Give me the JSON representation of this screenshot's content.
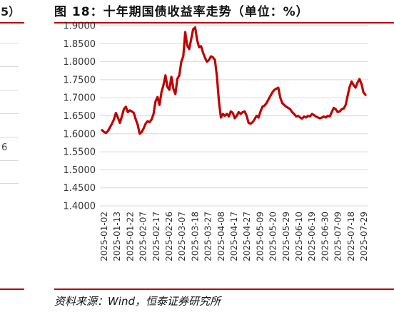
{
  "title": "图 18：十年期国债收益率走势（单位：%）",
  "source": "资料来源：Wind，恒泰证券研究所",
  "left_fragment": {
    "glyph_top": "5）",
    "glyph_mid": "6"
  },
  "colors": {
    "line": "#c00000",
    "grid": "#d9d9d9",
    "rule": "#c00000"
  },
  "chart_data": {
    "type": "line",
    "title": "",
    "xlabel": "",
    "ylabel": "",
    "ylim": [
      1.4,
      1.9
    ],
    "y_ticks": [
      "1.4000",
      "1.4500",
      "1.5000",
      "1.5500",
      "1.6000",
      "1.6500",
      "1.7000",
      "1.7500",
      "1.8000",
      "1.8500",
      "1.9000"
    ],
    "x_ticks": [
      "2025-01-02",
      "2025-01-13",
      "2025-01-22",
      "2025-02-07",
      "2025-02-17",
      "2025-02-26",
      "2025-03-07",
      "2025-03-18",
      "2025-03-27",
      "2025-04-08",
      "2025-04-17",
      "2025-04-27",
      "2025-05-09",
      "2025-05-20",
      "2025-05-29",
      "2025-06-10",
      "2025-06-19",
      "2025-06-30",
      "2025-07-09",
      "2025-07-18",
      "2025-07-29"
    ],
    "grid": "horizontal",
    "legend": "none",
    "series": [
      {
        "values": [
          1.61,
          1.605,
          1.602,
          1.608,
          1.618,
          1.628,
          1.64,
          1.658,
          1.645,
          1.63,
          1.648,
          1.668,
          1.675,
          1.66,
          1.665,
          1.662,
          1.658,
          1.64,
          1.625,
          1.6,
          1.605,
          1.615,
          1.628,
          1.635,
          1.632,
          1.64,
          1.655,
          1.69,
          1.702,
          1.68,
          1.715,
          1.735,
          1.762,
          1.73,
          1.722,
          1.758,
          1.725,
          1.71,
          1.752,
          1.762,
          1.8,
          1.815,
          1.882,
          1.845,
          1.835,
          1.862,
          1.89,
          1.895,
          1.86,
          1.84,
          1.843,
          1.825,
          1.81,
          1.8,
          1.805,
          1.815,
          1.812,
          1.805,
          1.76,
          1.69,
          1.645,
          1.655,
          1.65,
          1.655,
          1.648,
          1.662,
          1.658,
          1.643,
          1.65,
          1.66,
          1.655,
          1.66,
          1.662,
          1.65,
          1.63,
          1.628,
          1.632,
          1.64,
          1.65,
          1.645,
          1.662,
          1.675,
          1.678,
          1.685,
          1.695,
          1.705,
          1.715,
          1.722,
          1.725,
          1.728,
          1.7,
          1.685,
          1.68,
          1.675,
          1.672,
          1.668,
          1.66,
          1.655,
          1.648,
          1.65,
          1.645,
          1.642,
          1.648,
          1.645,
          1.65,
          1.648,
          1.655,
          1.652,
          1.648,
          1.645,
          1.643,
          1.645,
          1.648,
          1.645,
          1.65,
          1.648,
          1.66,
          1.672,
          1.668,
          1.66,
          1.662,
          1.668,
          1.67,
          1.68,
          1.705,
          1.73,
          1.745,
          1.735,
          1.728,
          1.742,
          1.752,
          1.738,
          1.715,
          1.708
        ]
      }
    ]
  }
}
